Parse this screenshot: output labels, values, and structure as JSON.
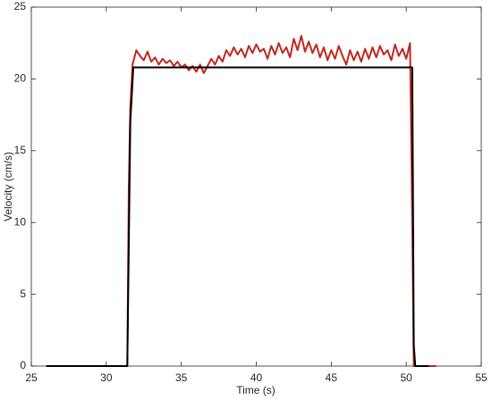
{
  "chart_data": {
    "type": "line",
    "xlabel": "Time (s)",
    "ylabel": "Velocity (cm/s)",
    "xlim": [
      25,
      55
    ],
    "xticks": [
      25,
      30,
      35,
      40,
      45,
      50,
      55
    ],
    "ylim": [
      0,
      25
    ],
    "yticks": [
      0,
      5,
      10,
      15,
      20,
      25
    ],
    "grid": false,
    "series": [
      {
        "color": "#c0281e",
        "x": [
          26,
          31.4,
          31.5,
          31.6,
          31.75,
          32,
          32.25,
          32.5,
          32.75,
          33,
          33.25,
          33.5,
          33.75,
          34,
          34.25,
          34.5,
          34.75,
          35,
          35.25,
          35.5,
          35.75,
          36,
          36.25,
          36.5,
          36.75,
          37,
          37.25,
          37.5,
          37.75,
          38,
          38.25,
          38.5,
          38.75,
          39,
          39.25,
          39.5,
          39.75,
          40,
          40.25,
          40.5,
          40.75,
          41,
          41.25,
          41.5,
          41.75,
          42,
          42.25,
          42.5,
          42.75,
          43,
          43.25,
          43.5,
          43.75,
          44,
          44.25,
          44.5,
          44.75,
          45,
          45.25,
          45.5,
          45.75,
          46,
          46.25,
          46.5,
          46.75,
          47,
          47.25,
          47.5,
          47.75,
          48,
          48.25,
          48.5,
          48.75,
          49,
          49.25,
          49.5,
          49.75,
          50,
          50.25,
          50.4,
          50.5,
          52
        ],
        "values": [
          0,
          0,
          12.5,
          18,
          21.0,
          22.0,
          21.6,
          21.3,
          21.9,
          21.2,
          21.5,
          21.0,
          21.4,
          21.1,
          21.3,
          20.9,
          21.2,
          20.8,
          21.0,
          20.6,
          20.9,
          20.5,
          21.0,
          20.4,
          20.9,
          21.4,
          21.0,
          21.6,
          21.2,
          22.0,
          21.6,
          22.2,
          21.7,
          22.1,
          21.5,
          22.3,
          21.8,
          22.4,
          21.9,
          22.1,
          21.4,
          22.3,
          21.7,
          22.5,
          21.8,
          22.2,
          21.5,
          22.8,
          22.0,
          23.0,
          21.9,
          22.6,
          21.8,
          22.4,
          21.5,
          22.2,
          21.3,
          22.0,
          21.4,
          22.3,
          21.6,
          21.0,
          22.0,
          21.3,
          21.9,
          21.2,
          22.1,
          21.4,
          22.2,
          21.5,
          22.3,
          21.7,
          22.0,
          21.3,
          22.4,
          21.6,
          22.1,
          21.4,
          22.5,
          10,
          0,
          0
        ]
      },
      {
        "color": "#000000",
        "x": [
          26,
          31.4,
          31.6,
          31.8,
          50.4,
          50.5,
          50.6,
          51.5
        ],
        "values": [
          0,
          0,
          17,
          20.8,
          20.8,
          1.5,
          0,
          0
        ]
      }
    ]
  }
}
